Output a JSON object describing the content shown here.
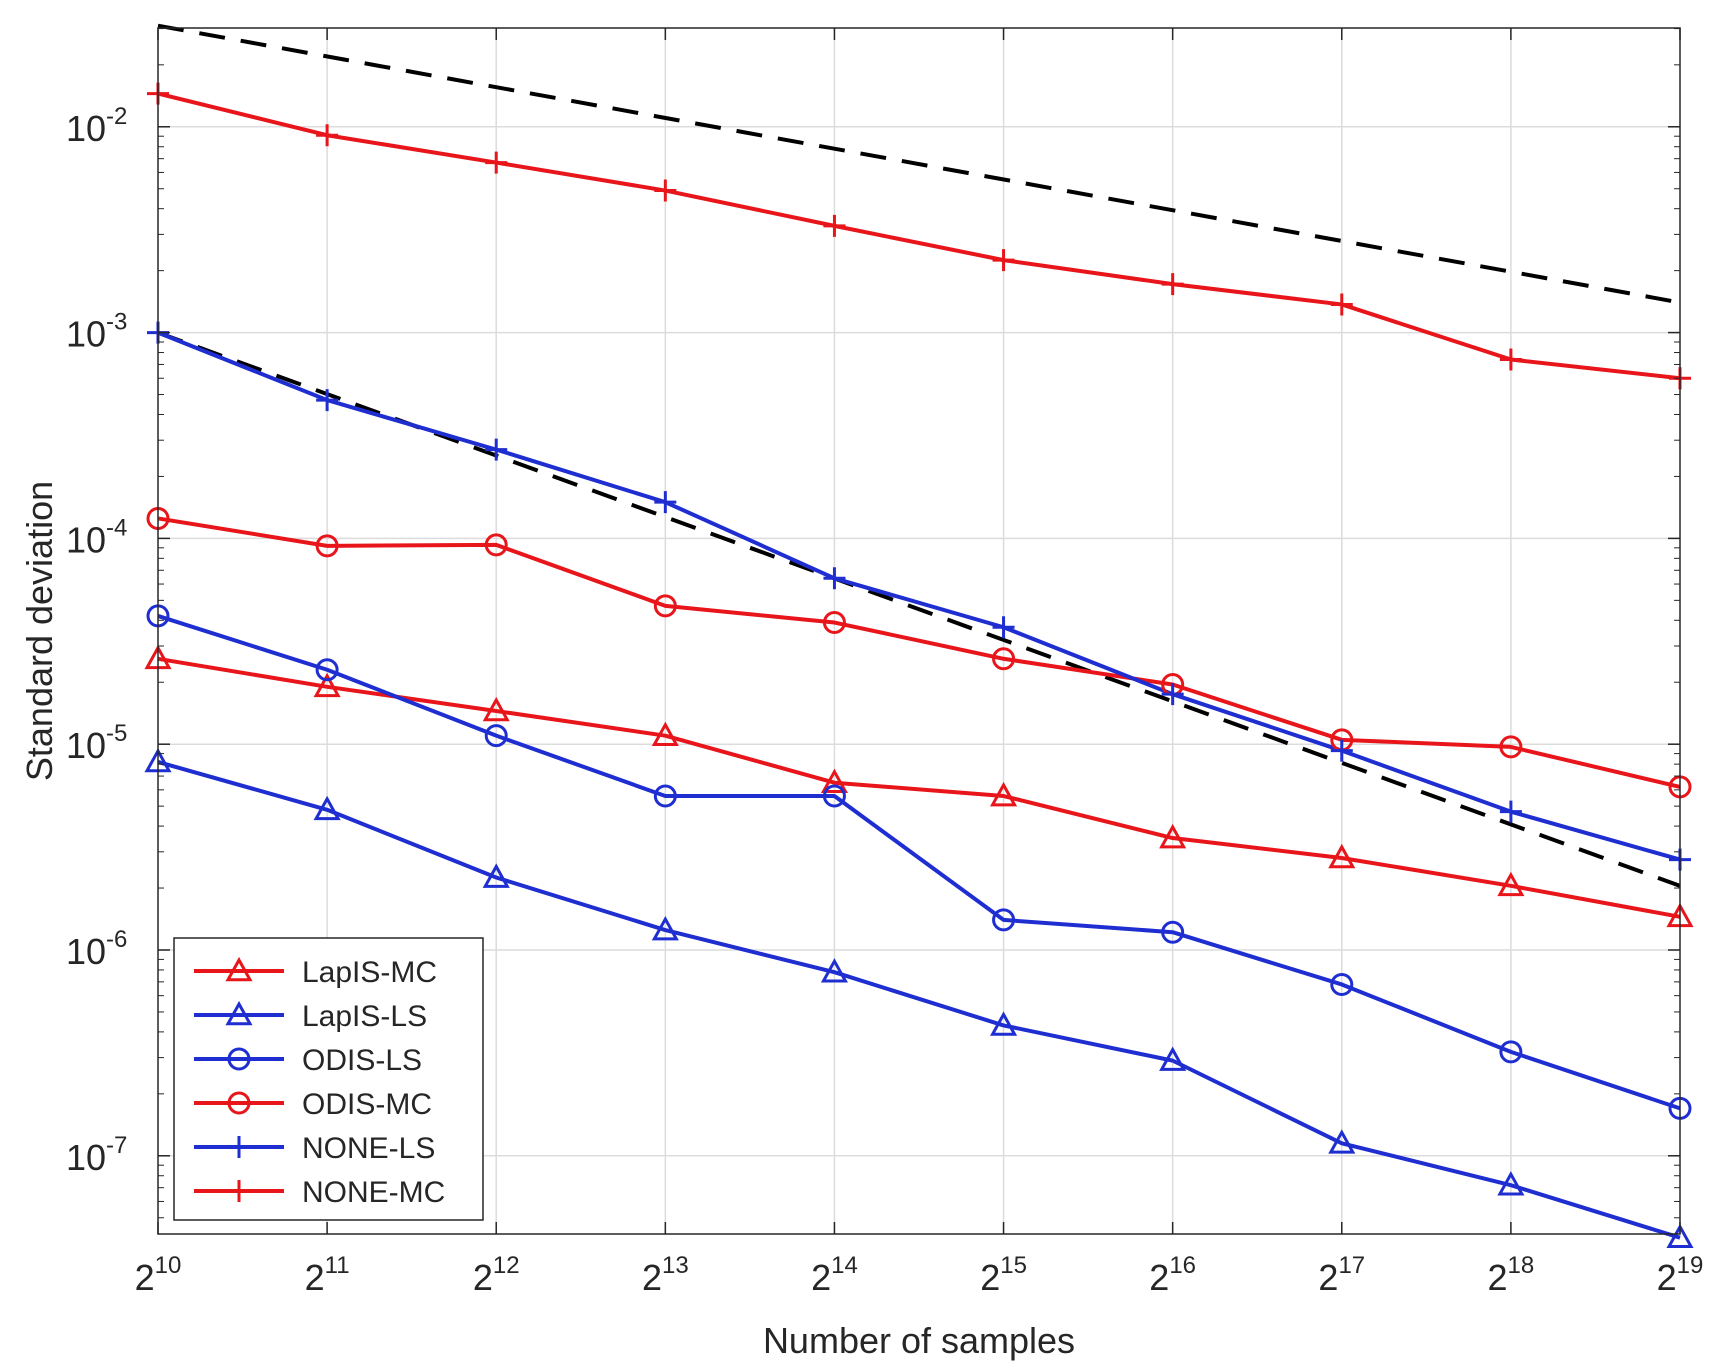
{
  "chart_data": {
    "type": "line",
    "title": "",
    "xlabel": "Number of samples",
    "ylabel": "Standard deviation",
    "x_scale": "log2",
    "y_scale": "log10",
    "x_exponents": [
      10,
      11,
      12,
      13,
      14,
      15,
      16,
      17,
      18,
      19
    ],
    "x_tick_labels": [
      {
        "base": "2",
        "exp": "10"
      },
      {
        "base": "2",
        "exp": "11"
      },
      {
        "base": "2",
        "exp": "12"
      },
      {
        "base": "2",
        "exp": "13"
      },
      {
        "base": "2",
        "exp": "14"
      },
      {
        "base": "2",
        "exp": "15"
      },
      {
        "base": "2",
        "exp": "16"
      },
      {
        "base": "2",
        "exp": "17"
      },
      {
        "base": "2",
        "exp": "18"
      },
      {
        "base": "2",
        "exp": "19"
      }
    ],
    "y_tick_labels": [
      {
        "base": "10",
        "exp": "-2",
        "log": -2
      },
      {
        "base": "10",
        "exp": "-3",
        "log": -3
      },
      {
        "base": "10",
        "exp": "-4",
        "log": -4
      },
      {
        "base": "10",
        "exp": "-5",
        "log": -5
      },
      {
        "base": "10",
        "exp": "-6",
        "log": -6
      },
      {
        "base": "10",
        "exp": "-7",
        "log": -7
      }
    ],
    "xlim_exp": [
      10,
      19
    ],
    "ylim_log10": [
      -7.38,
      -1.52
    ],
    "grid": true,
    "legend_location": "bottom-left",
    "series": [
      {
        "name": "LapIS-MC",
        "color": "#e8151b",
        "marker": "triangle",
        "values": [
          2.6e-05,
          1.9e-05,
          1.45e-05,
          1.1e-05,
          6.5e-06,
          5.6e-06,
          3.5e-06,
          2.8e-06,
          2.05e-06,
          1.45e-06
        ]
      },
      {
        "name": "LapIS-LS",
        "color": "#1f2ed1",
        "marker": "triangle",
        "values": [
          8.2e-06,
          4.8e-06,
          2.25e-06,
          1.25e-06,
          7.8e-07,
          4.3e-07,
          2.9e-07,
          1.15e-07,
          7.2e-08,
          4e-08
        ]
      },
      {
        "name": "ODIS-LS",
        "color": "#1f2ed1",
        "marker": "circle",
        "values": [
          4.2e-05,
          2.3e-05,
          1.1e-05,
          5.6e-06,
          5.6e-06,
          1.4e-06,
          1.22e-06,
          6.8e-07,
          3.2e-07,
          1.7e-07
        ]
      },
      {
        "name": "ODIS-MC",
        "color": "#e8151b",
        "marker": "circle",
        "values": [
          0.000125,
          9.2e-05,
          9.3e-05,
          4.7e-05,
          3.9e-05,
          2.6e-05,
          1.95e-05,
          1.05e-05,
          9.7e-06,
          6.2e-06
        ]
      },
      {
        "name": "NONE-LS",
        "color": "#1f2ed1",
        "marker": "plus",
        "values": [
          0.001,
          0.00047,
          0.00027,
          0.00015,
          6.4e-05,
          3.7e-05,
          1.75e-05,
          9.3e-06,
          4.7e-06,
          2.75e-06
        ]
      },
      {
        "name": "NONE-MC",
        "color": "#e8151b",
        "marker": "plus",
        "values": [
          0.0145,
          0.0091,
          0.0067,
          0.0049,
          0.0033,
          0.00225,
          0.00172,
          0.00137,
          0.00074,
          0.0006
        ]
      }
    ],
    "reference_lines": [
      {
        "name": "reference-upper",
        "style": "dashed",
        "color": "#000000",
        "values": [
          0.031,
          0.0014
        ]
      },
      {
        "name": "reference-lower",
        "style": "dashed",
        "color": "#000000",
        "values": [
          0.001,
          2.05e-06
        ]
      }
    ]
  }
}
